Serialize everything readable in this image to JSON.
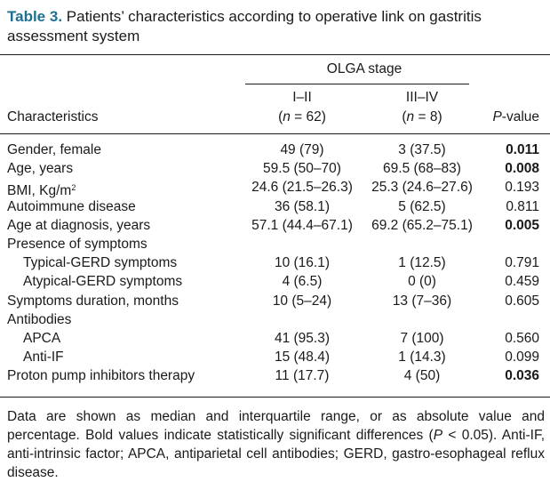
{
  "title": {
    "label": "Table 3.",
    "text": " Patients’ characteristics according to operative link on gastritis assessment system"
  },
  "header": {
    "group": "OLGA stage",
    "col1_name": "I–II",
    "col1_n_prefix": "(",
    "col1_n_var": "n",
    "col1_n_rest": " = 62)",
    "col2_name": "III–IV",
    "col2_n_prefix": "(",
    "col2_n_var": "n",
    "col2_n_rest": " = 8)",
    "characteristics": "Characteristics",
    "pvalue_var": "P",
    "pvalue_rest": "-value"
  },
  "rows": [
    {
      "label": "Gender, female",
      "v1": "49 (79)",
      "v2": "3 (37.5)",
      "p": "0.011",
      "sig": true
    },
    {
      "label": "Age, years",
      "v1": "59.5 (50–70)",
      "v2": "69.5 (68–83)",
      "p": "0.008",
      "sig": true
    },
    {
      "label": "BMI, Kg/m",
      "sup": "2",
      "v1": "24.6 (21.5–26.3)",
      "v2": "25.3 (24.6–27.6)",
      "p": "0.193",
      "sig": false
    },
    {
      "label": "Autoimmune disease",
      "v1": "36 (58.1)",
      "v2": "5 (62.5)",
      "p": "0.811",
      "sig": false
    },
    {
      "label": "Age at diagnosis, years",
      "v1": "57.1 (44.4–67.1)",
      "v2": "69.2 (65.2–75.1)",
      "p": "0.005",
      "sig": true
    },
    {
      "label": "Presence of symptoms",
      "v1": "",
      "v2": "",
      "p": "",
      "sig": false
    },
    {
      "label": "Typical-GERD symptoms",
      "v1": "10 (16.1)",
      "v2": "1 (12.5)",
      "p": "0.791",
      "sig": false,
      "indent": true
    },
    {
      "label": "Atypical-GERD symptoms",
      "v1": "4 (6.5)",
      "v2": "0 (0)",
      "p": "0.459",
      "sig": false,
      "indent": true
    },
    {
      "label": "Symptoms duration, months",
      "v1": "10 (5–24)",
      "v2": "13 (7–36)",
      "p": "0.605",
      "sig": false
    },
    {
      "label": "Antibodies",
      "v1": "",
      "v2": "",
      "p": "",
      "sig": false
    },
    {
      "label": "APCA",
      "v1": "41 (95.3)",
      "v2": "7 (100)",
      "p": "0.560",
      "sig": false,
      "indent": true
    },
    {
      "label": "Anti-IF",
      "v1": "15 (48.4)",
      "v2": "1 (14.3)",
      "p": "0.099",
      "sig": false,
      "indent": true
    },
    {
      "label": "Proton pump inhibitors therapy",
      "v1": "11 (17.7)",
      "v2": "4 (50)",
      "p": "0.036",
      "sig": true
    }
  ],
  "footnote": {
    "part1": "Data are shown as median and interquartile range, or as absolute value and percentage. Bold values indicate statistically significant differences (",
    "var": "P",
    "part2": " < 0.05). Anti-IF, anti-intrinsic factor; APCA, antiparietal cell antibodies; GERD, gastro-esophageal reflux disease."
  }
}
